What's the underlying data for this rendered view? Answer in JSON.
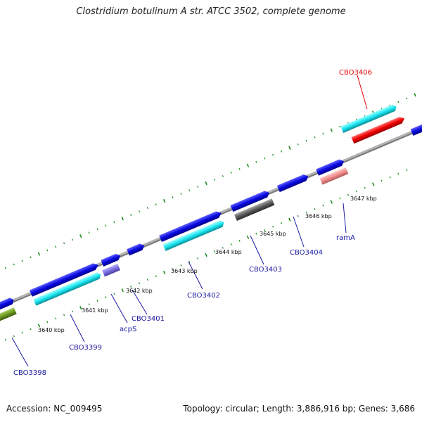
{
  "title": "Clostridium botulinum A str. ATCC 3502, complete genome",
  "footer": {
    "accession": "Accession: NC_009495",
    "summary": "Topology: circular; Length: 3,886,916 bp; Genes: 3,686"
  },
  "ticks": [
    "3640 kbp",
    "3641 kbp",
    "3642 kbp",
    "3643 kbp",
    "3644 kbp",
    "3645 kbp",
    "3646 kbp",
    "3647 kbp"
  ],
  "gene_labels": [
    {
      "text": "CBO3398",
      "color": "#1a1aa0"
    },
    {
      "text": "CBO3399",
      "color": "#1a1aa0"
    },
    {
      "text": "acpS",
      "color": "#1a1aa0"
    },
    {
      "text": "CBO3401",
      "color": "#1a1aa0"
    },
    {
      "text": "CBO3402",
      "color": "#1a1aa0"
    },
    {
      "text": "CBO3403",
      "color": "#1a1aa0"
    },
    {
      "text": "CBO3404",
      "color": "#1a1aa0"
    },
    {
      "text": "ramA",
      "color": "#1a1aa0"
    },
    {
      "text": "CBO3406",
      "color": "#e00000"
    }
  ],
  "colors": {
    "backbone": "#8a8a8a",
    "tick_green": "#1e8a1e",
    "cds_blue": "#0a0ae0",
    "cds_cyan": "#19e6f0",
    "cds_red": "#f00000",
    "cds_pink": "#f08c8c",
    "cds_gray": "#5a5a5a",
    "cds_olive": "#6e9a20",
    "cds_purple": "#7b6ee0"
  }
}
